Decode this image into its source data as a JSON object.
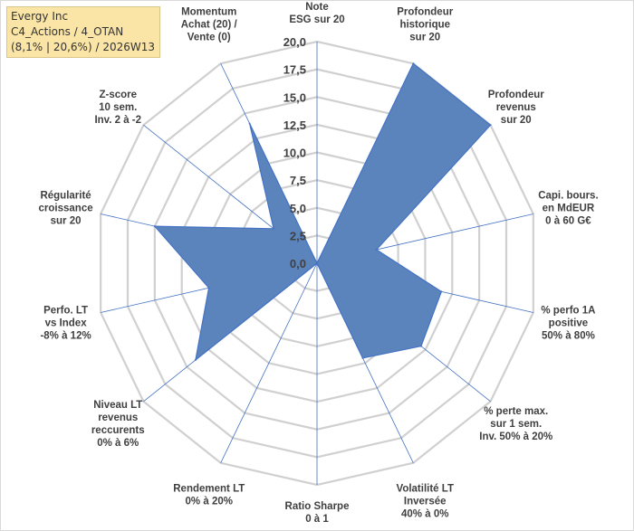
{
  "header": {
    "line1": "Evergy Inc",
    "line2": "C4_Actions / 4_OTAN",
    "line3": "(8,1% | 20,6%) / 2026W13"
  },
  "colors": {
    "fill": "#5b84bd",
    "stroke": "#4472c4",
    "grid": "#d0d0d0",
    "spoke": "#4472c4",
    "title_bg": "#fbe5a6"
  },
  "chart_data": {
    "type": "radar",
    "rlim": [
      0,
      20
    ],
    "ticks": [
      "0,0",
      "2,5",
      "5,0",
      "7,5",
      "10,0",
      "12,5",
      "15,0",
      "17,5",
      "20,0"
    ],
    "axes": [
      {
        "lines": [
          "Note",
          "ESG sur 20"
        ],
        "value": 0
      },
      {
        "lines": [
          "Profondeur",
          "historique",
          "sur 20"
        ],
        "value": 20
      },
      {
        "lines": [
          "Profondeur",
          "revenus",
          "sur 20"
        ],
        "value": 20
      },
      {
        "lines": [
          "Capi. bours.",
          "en MdEUR",
          "0 à 60 G€"
        ],
        "value": 5.5
      },
      {
        "lines": [
          "% perfo 1A",
          "positive",
          "50% à 80%"
        ],
        "value": 11.5
      },
      {
        "lines": [
          "% perte max.",
          "sur 1 sem.",
          "Inv. 50% à 20%"
        ],
        "value": 12
      },
      {
        "lines": [
          "Volatilité LT",
          "Inversée",
          "40% à 0%"
        ],
        "value": 9.5
      },
      {
        "lines": [
          "Ratio Sharpe",
          "0 à 1"
        ],
        "value": 0
      },
      {
        "lines": [
          "Rendement LT",
          "0% à 20%"
        ],
        "value": 0
      },
      {
        "lines": [
          "Niveau LT",
          "revenus",
          "reccurents",
          "0% à 6%"
        ],
        "value": 14
      },
      {
        "lines": [
          "Perfo. LT",
          "vs Index",
          "-8% à 12%"
        ],
        "value": 10
      },
      {
        "lines": [
          "Régularité",
          "croissance",
          "sur 20"
        ],
        "value": 15
      },
      {
        "lines": [
          "Z-score",
          "10 sem.",
          "Inv. 2 à -2"
        ],
        "value": 5
      },
      {
        "lines": [
          "Momentum",
          "Achat (20) /",
          "Vente (0)"
        ],
        "value": 14
      }
    ]
  }
}
